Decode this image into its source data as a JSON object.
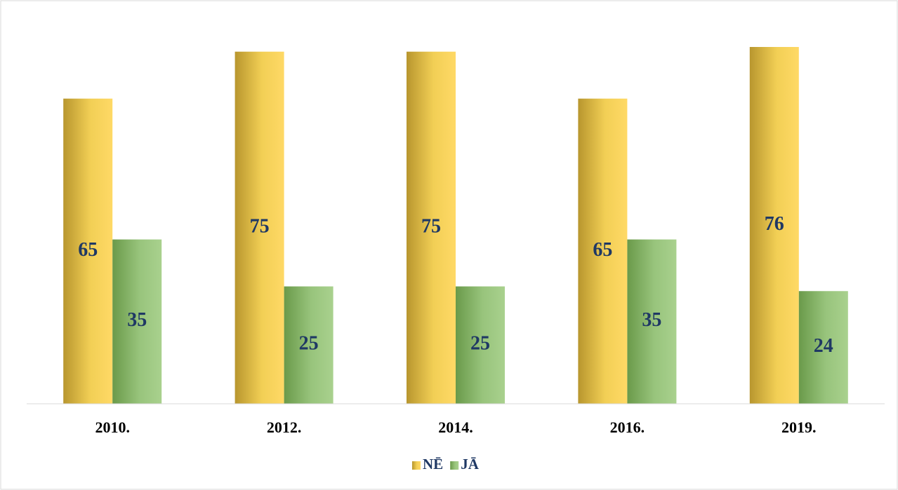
{
  "chart_data": {
    "type": "bar",
    "categories": [
      "2010.",
      "2012.",
      "2014.",
      "2016.",
      "2019."
    ],
    "series": [
      {
        "name": "NĒ",
        "color": "#ffd966",
        "values": [
          65,
          75,
          75,
          65,
          76
        ]
      },
      {
        "name": "JĀ",
        "color": "#a9d18e",
        "values": [
          35,
          25,
          25,
          35,
          24
        ]
      }
    ],
    "legend": "bottom"
  }
}
